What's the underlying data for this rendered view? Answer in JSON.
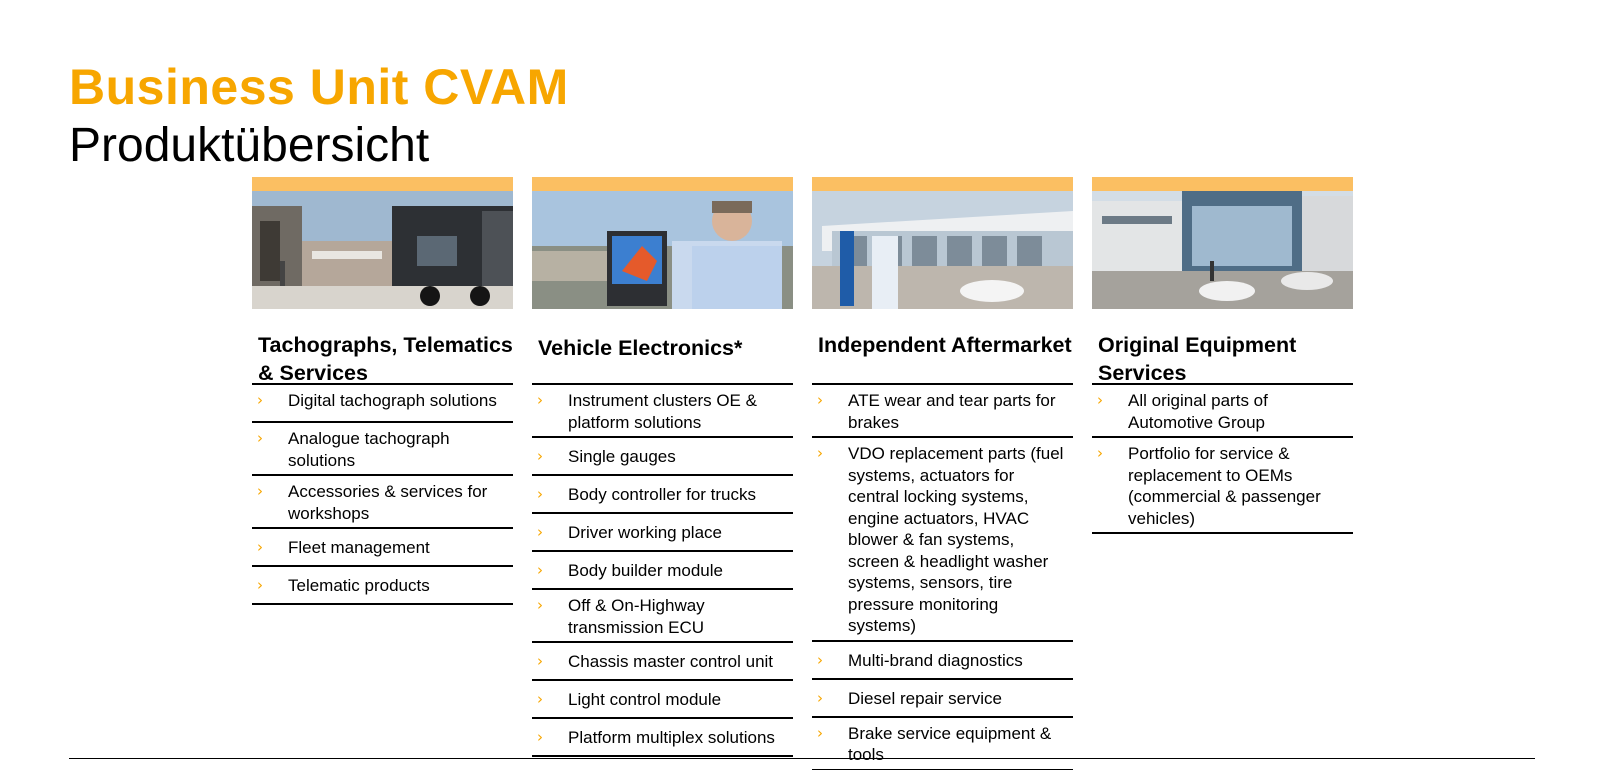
{
  "title": {
    "main": "Business Unit CVAM",
    "sub": "Produktübersicht"
  },
  "colors": {
    "accent": "#f7a600",
    "bar": "#fbbf62"
  },
  "columns": [
    {
      "heading": "Tachographs, Telematics & Services",
      "photo": "truck-depot-photo",
      "items": [
        "Digital tachograph solutions",
        "Analogue tachograph solutions",
        "Accessories & services for workshops",
        "Fleet management",
        "Telematic products"
      ]
    },
    {
      "heading": "Vehicle Electronics*",
      "photo": "engineer-touchscreen-photo",
      "items": [
        "Instrument clusters OE & platform solutions",
        "Single gauges",
        "Body controller for trucks",
        "Driver working place",
        "Body builder module",
        "Off & On-Highway transmission ECU",
        "Chassis master control unit",
        "Light control module",
        "Platform multiplex solutions"
      ]
    },
    {
      "heading": "Independent Aftermarket",
      "photo": "workshop-building-photo",
      "items": [
        "ATE wear and tear parts for brakes",
        "VDO replacement parts (fuel systems, actuators for central locking systems, engine actuators, HVAC blower & fan systems, screen & headlight washer systems, sensors, tire pressure monitoring systems)",
        "Multi-brand diagnostics",
        "Diesel repair service",
        "Brake service equipment & tools"
      ]
    },
    {
      "heading": "Original Equipment Services",
      "photo": "dealership-building-photo",
      "items": [
        "All original parts of Automotive Group",
        "Portfolio for service & replacement to OEMs (commercial & passenger vehicles)"
      ]
    }
  ],
  "bullet_icon": "chevron-right-icon",
  "bullet_glyph": "›"
}
